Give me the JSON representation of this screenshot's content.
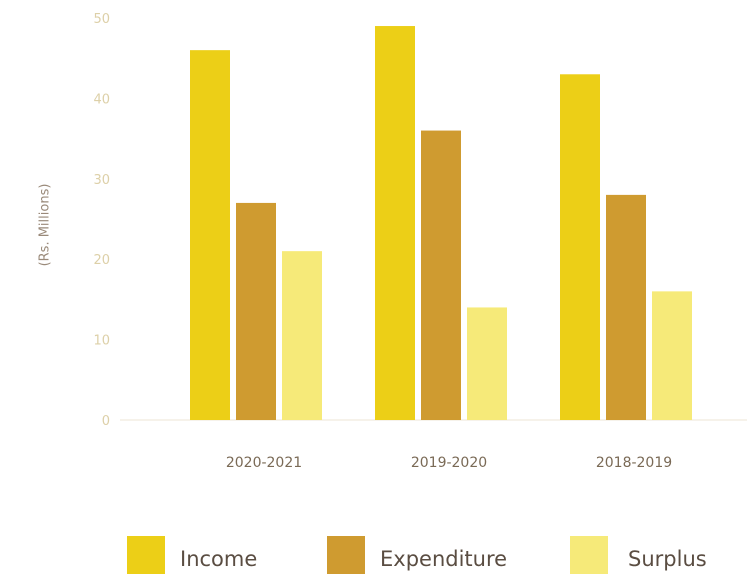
{
  "chart_data": {
    "type": "bar",
    "categories": [
      "2020-2021",
      "2019-2020",
      "2018-2019"
    ],
    "series": [
      {
        "name": "Income",
        "values": [
          46,
          49,
          43
        ],
        "color": "#eccf17"
      },
      {
        "name": "Expenditure",
        "values": [
          27,
          36,
          28
        ],
        "color": "#cf9b30"
      },
      {
        "name": "Surplus",
        "values": [
          21,
          14,
          16
        ],
        "color": "#f6ea79"
      }
    ],
    "ylabel": "(Rs. Millions)",
    "ylim": [
      0,
      50
    ],
    "yticks": [
      "0",
      "10",
      "20",
      "30",
      "40",
      "50"
    ],
    "grid": false,
    "legend": "bottom",
    "colors": {
      "tick_label": "#ddd0a8",
      "category_label": "#7a6a56",
      "axis_title": "#9a8a7a",
      "legend_label": "#5a4d42",
      "baseline": "#f3eee3"
    }
  }
}
